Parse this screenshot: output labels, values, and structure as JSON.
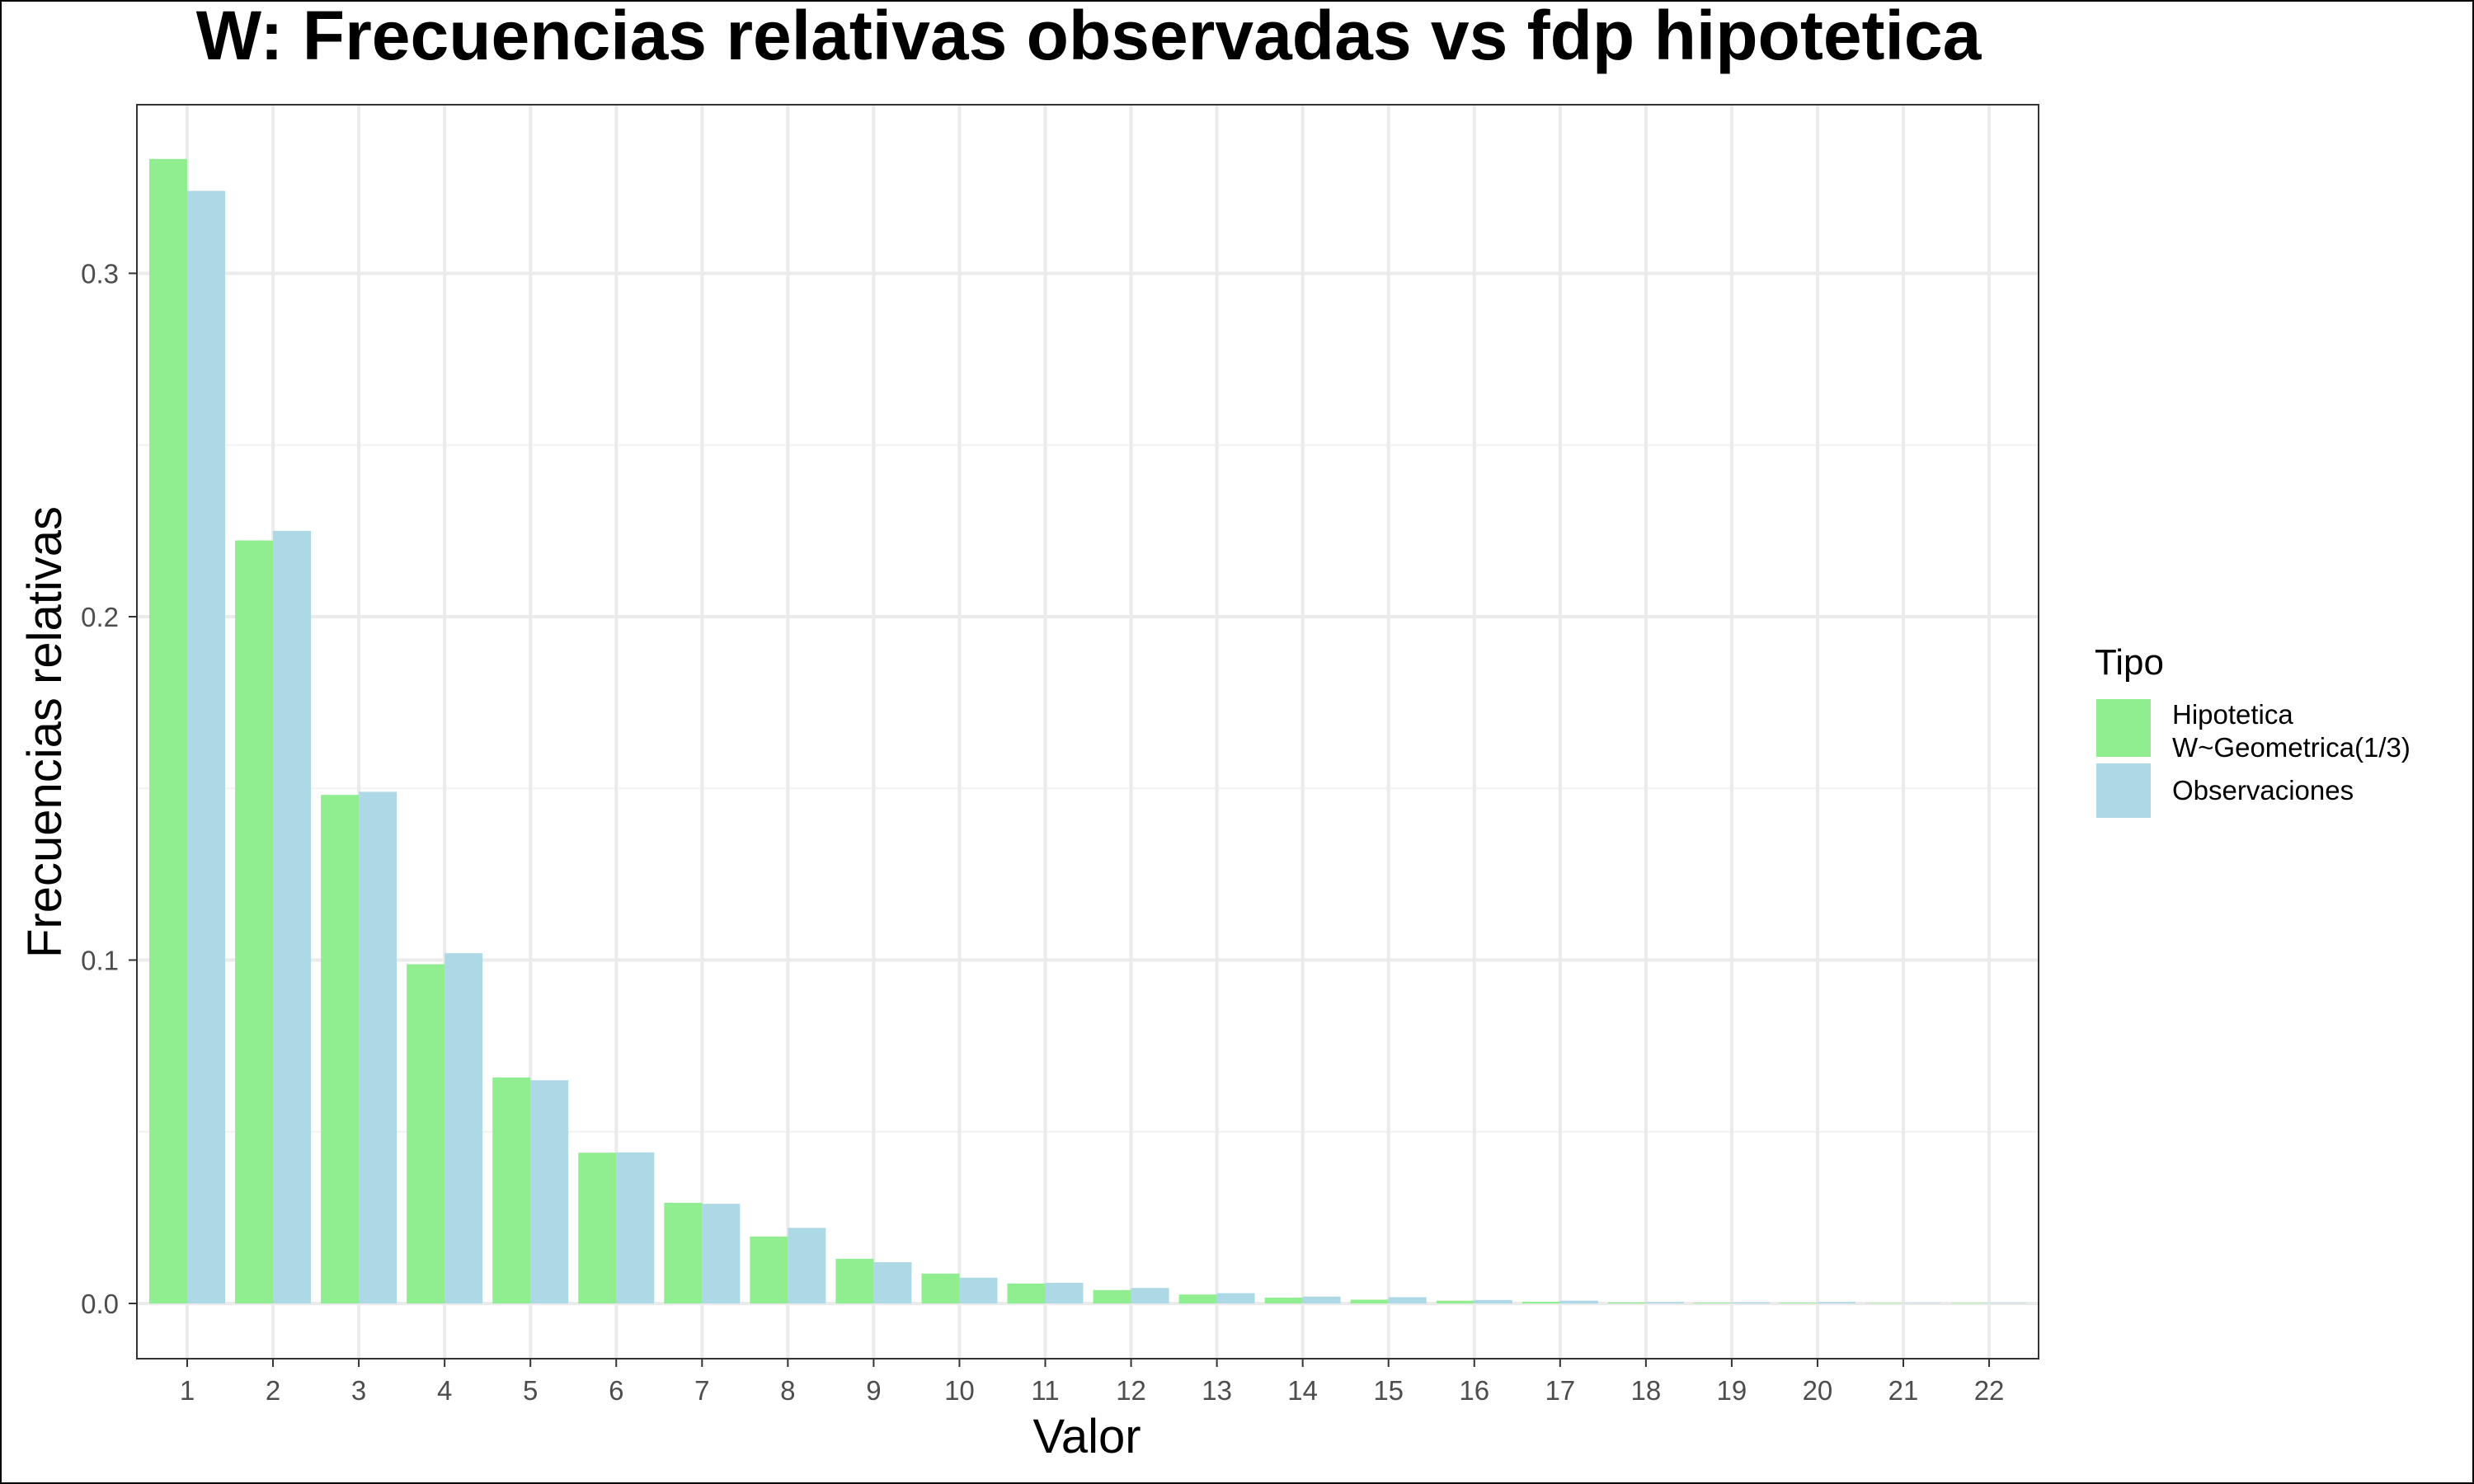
{
  "chart_data": {
    "type": "bar",
    "title": "W: Frecuencias relativas observadas vs fdp hipotetica",
    "xlabel": "Valor",
    "ylabel": "Frecuencias relativas",
    "categories": [
      "1",
      "2",
      "3",
      "4",
      "5",
      "6",
      "7",
      "8",
      "9",
      "10",
      "11",
      "12",
      "13",
      "14",
      "15",
      "16",
      "17",
      "18",
      "19",
      "20",
      "21",
      "22"
    ],
    "ylim": [
      -0.016,
      0.35
    ],
    "yticks": [
      0.0,
      0.1,
      0.2,
      0.3
    ],
    "ytick_labels": [
      "0.0",
      "0.1",
      "0.2",
      "0.3"
    ],
    "grid": true,
    "legend": {
      "title": "Tipo",
      "position": "right"
    },
    "series": [
      {
        "name": "Hipotetica\nW~Geometrica(1/3)",
        "color": "#90ee90",
        "values": [
          0.3333,
          0.2222,
          0.1481,
          0.0988,
          0.0658,
          0.0439,
          0.0293,
          0.0195,
          0.013,
          0.0087,
          0.0058,
          0.0039,
          0.0026,
          0.0017,
          0.0011,
          0.0008,
          0.0005,
          0.0003,
          0.0002,
          0.0002,
          0.0001,
          0.0001
        ]
      },
      {
        "name": "Observaciones",
        "color": "#add8e6",
        "values": [
          0.324,
          0.225,
          0.149,
          0.102,
          0.065,
          0.044,
          0.029,
          0.022,
          0.012,
          0.0075,
          0.006,
          0.0045,
          0.003,
          0.002,
          0.0018,
          0.001,
          0.0008,
          0.0004,
          0.0003,
          0.0004,
          0.0001,
          0.0001
        ]
      }
    ]
  }
}
